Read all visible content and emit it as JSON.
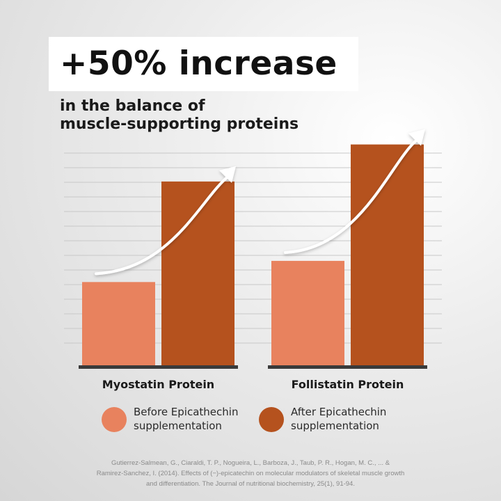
{
  "header": {
    "headline": "+50% increase",
    "subhead_line1": "in the balance of",
    "subhead_line2": "muscle-supporting proteins"
  },
  "chart_data": {
    "type": "bar",
    "title": "+50% increase",
    "categories": [
      "Myostatin Protein",
      "Follistatin Protein"
    ],
    "series": [
      {
        "name": "Before Epicathechin supplementation",
        "values": [
          32,
          40
        ]
      },
      {
        "name": "After Epicathechin supplementation",
        "values": [
          70,
          84
        ]
      }
    ],
    "ylim": [
      0,
      86
    ],
    "grid": true,
    "legend_position": "bottom",
    "annotations": [
      "upward arrow over Myostatin Protein bars",
      "upward arrow over Follistatin Protein bars"
    ]
  },
  "colors": {
    "before": "#E8825E",
    "after": "#B5521E",
    "baseline": "#3a3a3a",
    "grid": "#c8c8c8"
  },
  "legend": [
    {
      "line1": "Before Epicathechin",
      "line2": "supplementation"
    },
    {
      "line1": "After Epicathechin",
      "line2": "supplementation"
    }
  ],
  "citation": {
    "line1": "Gutierrez-Salmean, G., Ciaraldi, T. P., Nogueira, L., Barboza, J., Taub, P. R., Hogan, M. C., ... &",
    "line2": "Ramirez-Sanchez, I. (2014). Effects of (−)-epicatechin on molecular modulators of skeletal muscle growth",
    "line3": "and differentiation. The Journal of nutritional biochemistry, 25(1), 91-94."
  }
}
